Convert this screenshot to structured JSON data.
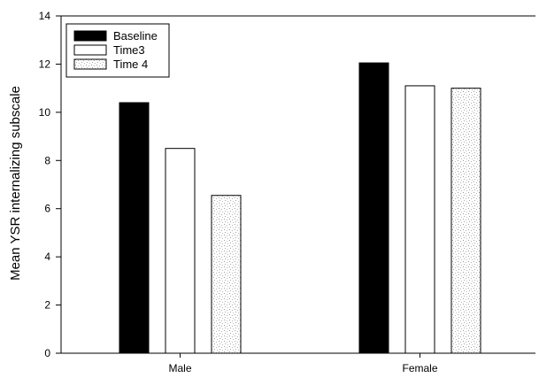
{
  "chart_data": {
    "type": "bar",
    "categories": [
      "Male",
      "Female"
    ],
    "series": [
      {
        "name": "Baseline",
        "values": [
          10.4,
          12.05
        ],
        "style": "solid",
        "color": "#000000"
      },
      {
        "name": "Time3",
        "values": [
          8.5,
          11.1
        ],
        "style": "open",
        "color": "#ffffff"
      },
      {
        "name": "Time 4",
        "values": [
          6.55,
          11.0
        ],
        "style": "stipple",
        "color": "#d8d8d8"
      }
    ],
    "title": "",
    "xlabel": "",
    "ylabel": "Mean YSR internalizing subscale",
    "ylim": [
      0,
      14
    ],
    "yticks": [
      0,
      2,
      4,
      6,
      8,
      10,
      12,
      14
    ],
    "grid": false,
    "legend": "top-left"
  }
}
